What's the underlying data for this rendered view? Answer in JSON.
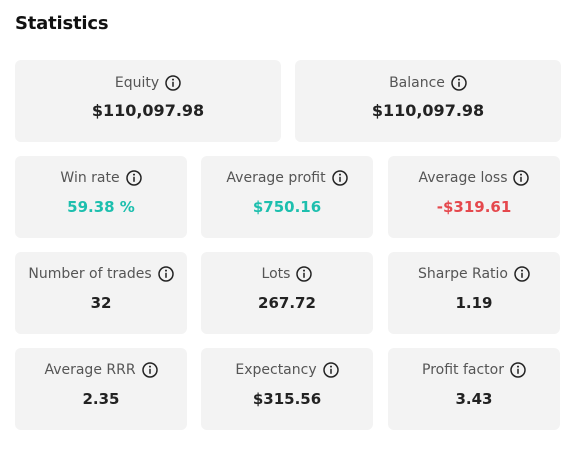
{
  "title": "Statistics",
  "colors": {
    "positive": "#1dbfae",
    "negative": "#e5484d",
    "card_bg": "#f3f3f3"
  },
  "icons": {
    "info": "info-circle-icon"
  },
  "top": {
    "equity": {
      "label": "Equity",
      "value": "$110,097.98"
    },
    "balance": {
      "label": "Balance",
      "value": "$110,097.98"
    }
  },
  "stats": [
    {
      "label": "Win rate",
      "value": "59.38 %",
      "tone": "positive"
    },
    {
      "label": "Average profit",
      "value": "$750.16",
      "tone": "positive"
    },
    {
      "label": "Average loss",
      "value": "-$319.61",
      "tone": "negative"
    },
    {
      "label": "Number of trades",
      "value": "32",
      "tone": "neutral"
    },
    {
      "label": "Lots",
      "value": "267.72",
      "tone": "neutral"
    },
    {
      "label": "Sharpe Ratio",
      "value": "1.19",
      "tone": "neutral"
    },
    {
      "label": "Average RRR",
      "value": "2.35",
      "tone": "neutral"
    },
    {
      "label": "Expectancy",
      "value": "$315.56",
      "tone": "neutral"
    },
    {
      "label": "Profit factor",
      "value": "3.43",
      "tone": "neutral"
    }
  ]
}
